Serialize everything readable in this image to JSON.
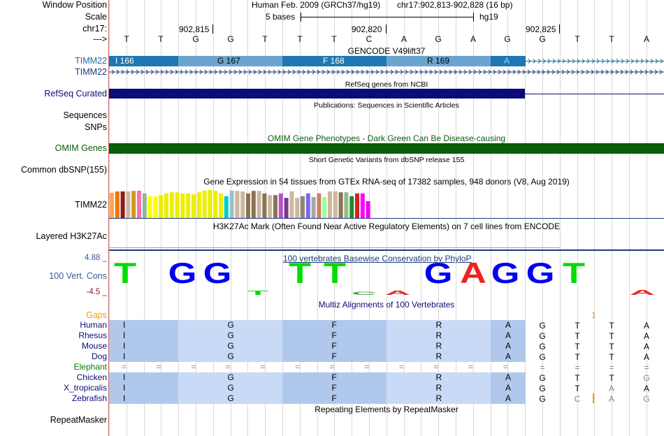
{
  "header": {
    "window_position_label": "Window Position",
    "scale_label": "Scale",
    "chr_label": "chr17:",
    "arrow_label": "--->",
    "assembly": "Human Feb. 2009 (GRCh37/hg19)",
    "position": "chr17:902,813-902,828 (16 bp)",
    "scale_text": "5 bases",
    "db": "hg19",
    "coord_1": "902,815",
    "coord_2": "902,820",
    "coord_3": "902,825"
  },
  "sequence": [
    "T",
    "T",
    "G",
    "G",
    "T",
    "T",
    "T",
    "C",
    "A",
    "G",
    "A",
    "G",
    "G",
    "T",
    "T",
    "A"
  ],
  "tracks": {
    "gencode_title": "GENCODE V49lift37",
    "timm22_label": "TIMM22",
    "timm22_label_2": "TIMM22",
    "exon_labels": [
      "I 166",
      "G 167",
      "F 168",
      "R 169",
      "A"
    ],
    "refseq_label": "RefSeq Curated",
    "refseq_title": "RefSeq genes from NCBI",
    "publications_title": "Publications: Sequences in Scientific Articles",
    "sequences_label": "Sequences",
    "snps_label": "SNPs",
    "omim_title": "OMIM Gene Phenotypes - Dark Green Can Be Disease-causing",
    "omim_label": "OMIM Genes",
    "dbsnp_title": "Short Genetic Variants from dbSNP release 155",
    "dbsnp_label": "Common dbSNP(155)",
    "gtex_title": "Gene Expression in 54 tissues from GTEx RNA-seq of 17382 samples, 948 donors (V8, Aug 2019)",
    "gtex_label": "TIMM22",
    "h3k27_title": "H3K27Ac Mark (Often Found Near Active Regulatory Elements) on 7 cell lines from ENCODE",
    "h3k27_label": "Layered H3K27Ac",
    "phylop_title": "100 vertebrates Basewise Conservation by PhyloP",
    "cons_label": "100 Vert. Cons",
    "cons_max": "4.88 _",
    "cons_min": "-4.5 _",
    "multiz_title": "Multiz Alignments of 100 Vertebrates",
    "gaps_label": "Gaps",
    "gaps_mark": "1",
    "repeat_title": "Repeating Elements by RepeatMasker",
    "repeat_label": "RepeatMasker"
  },
  "gtex_values": [
    0.9,
    0.95,
    0.95,
    0.95,
    0.97,
    0.98,
    0.88,
    0.78,
    0.78,
    0.82,
    0.88,
    0.92,
    0.92,
    0.88,
    0.88,
    0.85,
    0.92,
    0.98,
    1.0,
    0.97,
    0.88,
    0.78,
    0.98,
    0.97,
    0.95,
    0.88,
    0.97,
    0.97,
    0.88,
    0.82,
    0.82,
    0.88,
    0.72,
    0.95,
    0.72,
    0.78,
    0.88,
    0.75,
    0.88,
    0.75,
    0.95,
    0.95,
    0.92,
    0.92,
    0.78,
    0.88,
    0.88,
    0.6
  ],
  "gtex_colors": [
    "#ffa54f",
    "#ee7600",
    "#8b1a1a",
    "#cdb79e",
    "#cd9b1d",
    "#ff6eb4",
    "#8fbc8f",
    "#ffff00",
    "#ffff00",
    "#eeee00",
    "#eeee00",
    "#eeee00",
    "#eeee00",
    "#eeee00",
    "#eeee00",
    "#eeee00",
    "#eeee00",
    "#eeee00",
    "#eeee00",
    "#eeee00",
    "#eeee00",
    "#00cdcd",
    "#9ac0cd",
    "#cdb79e",
    "#cdb79e",
    "#8b7355",
    "#8b7355",
    "#cdb79e",
    "#8b7355",
    "#cdb79e",
    "#8b7355",
    "#b452cd",
    "#7a378b",
    "#cdb79e",
    "#cdb79e",
    "#8b8970",
    "#7a67ee",
    "#a6a6a6",
    "#cd8162",
    "#9aff9a",
    "#cdb79e",
    "#cdb79e",
    "#8b7355",
    "#8fbc8f",
    "#228b22",
    "#cd2626",
    "#ff00ff",
    "#ee00ee"
  ],
  "conservation": [
    {
      "letter": "T",
      "color": "#00dd00",
      "h": 1.0
    },
    {
      "letter": "G",
      "color": "#0000ee",
      "h": 1.0
    },
    {
      "letter": "G",
      "color": "#0000ee",
      "h": 1.0
    },
    {
      "letter": "T",
      "color": "#00dd00",
      "h": 0.2
    },
    {
      "letter": "T",
      "color": "#00dd00",
      "h": 1.0
    },
    {
      "letter": "T",
      "color": "#00dd00",
      "h": 1.0
    },
    {
      "letter": "C",
      "color": "#44aa44",
      "h": 0.15
    },
    {
      "letter": "A",
      "color": "#ee2222",
      "h": 0.2
    },
    {
      "letter": "G",
      "color": "#0000ee",
      "h": 1.0
    },
    {
      "letter": "A",
      "color": "#ee2222",
      "h": 1.0
    },
    {
      "letter": "G",
      "color": "#0000ee",
      "h": 1.0
    },
    {
      "letter": "G",
      "color": "#0000ee",
      "h": 1.0
    },
    {
      "letter": "T",
      "color": "#00dd00",
      "h": 1.0
    },
    {
      "letter": "A",
      "color": "#ee2222",
      "h": 0.25
    }
  ],
  "species": [
    {
      "name": "Human",
      "aa": [
        "I",
        "G",
        "F",
        "R",
        "A"
      ],
      "nt": [
        "G",
        "T",
        "T",
        "A"
      ],
      "ntcolor": [
        "#000",
        "#000",
        "#000",
        "#000"
      ]
    },
    {
      "name": "Rhesus",
      "aa": [
        "I",
        "G",
        "F",
        "R",
        "A"
      ],
      "nt": [
        "G",
        "T",
        "T",
        "A"
      ],
      "ntcolor": [
        "#000",
        "#000",
        "#000",
        "#000"
      ]
    },
    {
      "name": "Mouse",
      "aa": [
        "I",
        "G",
        "F",
        "R",
        "A"
      ],
      "nt": [
        "G",
        "T",
        "T",
        "A"
      ],
      "ntcolor": [
        "#000",
        "#000",
        "#000",
        "#000"
      ]
    },
    {
      "name": "Dog",
      "aa": [
        "I",
        "G",
        "F",
        "R",
        "A"
      ],
      "nt": [
        "G",
        "T",
        "T",
        "A"
      ],
      "ntcolor": [
        "#000",
        "#000",
        "#000",
        "#000"
      ]
    },
    {
      "name": "Elephant",
      "aa": [
        "=",
        "=",
        "=",
        "=",
        "=",
        "=",
        "=",
        "=",
        "=",
        "=",
        "=",
        "="
      ],
      "nt": [
        "=",
        "=",
        "=",
        "="
      ],
      "ntcolor": [
        "#888",
        "#888",
        "#888",
        "#888"
      ]
    },
    {
      "name": "Chicken",
      "aa": [
        "I",
        "G",
        "F",
        "R",
        "A"
      ],
      "nt": [
        "G",
        "T",
        "T",
        "G"
      ],
      "ntcolor": [
        "#000",
        "#000",
        "#000",
        "#888"
      ]
    },
    {
      "name": "X_tropicalis",
      "aa": [
        "I",
        "G",
        "F",
        "R",
        "A"
      ],
      "nt": [
        "G",
        "T",
        "A",
        "A"
      ],
      "ntcolor": [
        "#000",
        "#000",
        "#888",
        "#000"
      ]
    },
    {
      "name": "Zebrafish",
      "aa": [
        "I",
        "G",
        "F",
        "R",
        "A"
      ],
      "nt": [
        "G",
        "C",
        "A",
        "G"
      ],
      "ntcolor": [
        "#000",
        "#888",
        "#888",
        "#888"
      ]
    }
  ]
}
